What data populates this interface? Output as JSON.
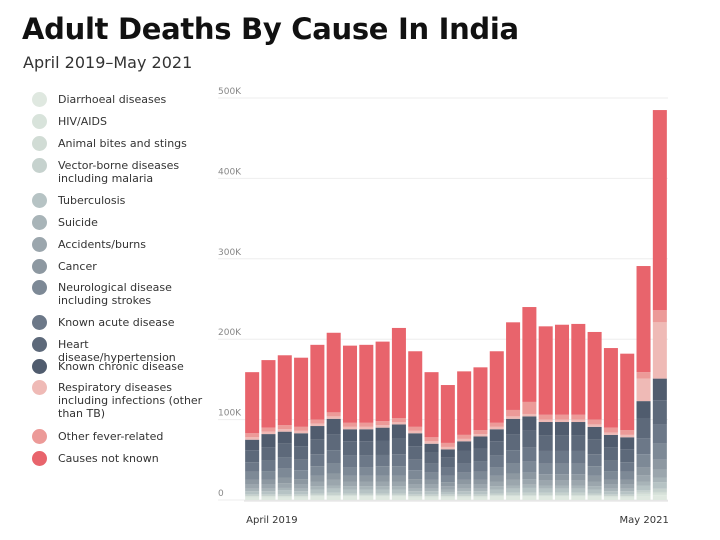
{
  "chart_data": {
    "type": "stacked-bar",
    "title": "Adult Deaths By Cause In India",
    "subtitle": "April 2019–May 2021",
    "categories": [
      "April 2019",
      null,
      null,
      null,
      null,
      null,
      null,
      null,
      null,
      null,
      null,
      null,
      null,
      null,
      null,
      null,
      null,
      null,
      null,
      null,
      null,
      null,
      null,
      null,
      null,
      "May 2021"
    ],
    "ylim": [
      0,
      500
    ],
    "yticks": [
      0,
      {
        "value": 100,
        "label": "100K"
      },
      {
        "value": 200,
        "label": "200K"
      },
      {
        "value": 300,
        "label": "300K"
      },
      {
        "value": 400,
        "label": "400K"
      },
      {
        "value": 500,
        "label": "500K"
      }
    ],
    "grid": true,
    "legend": "left",
    "series": [
      {
        "name": "Diarrhoeal diseases",
        "color": "#dfe8e0",
        "values": [
          3,
          3,
          3,
          3,
          4,
          4,
          4,
          4,
          4,
          4,
          3,
          3,
          3,
          3,
          3,
          4,
          4,
          4,
          4,
          4,
          4,
          4,
          3,
          3,
          5,
          6
        ]
      },
      {
        "name": "HIV/AIDS",
        "color": "#d8e3db",
        "values": [
          1,
          1,
          1,
          1,
          1,
          1,
          1,
          1,
          1,
          1,
          1,
          1,
          1,
          1,
          1,
          1,
          1,
          1,
          1,
          1,
          1,
          1,
          1,
          1,
          2,
          2
        ]
      },
      {
        "name": "Animal bites and stings",
        "color": "#d1dcd5",
        "values": [
          1,
          1,
          1,
          1,
          1,
          1,
          1,
          1,
          1,
          1,
          1,
          1,
          1,
          1,
          1,
          1,
          1,
          1,
          1,
          1,
          1,
          1,
          1,
          1,
          2,
          2
        ]
      },
      {
        "name": "Vector-borne diseases including malaria",
        "color": "#c6d2ce",
        "values": [
          2,
          2,
          2,
          2,
          2,
          3,
          2,
          2,
          2,
          2,
          2,
          2,
          2,
          2,
          2,
          2,
          3,
          3,
          3,
          3,
          3,
          2,
          2,
          2,
          3,
          4
        ]
      },
      {
        "name": "Tuberculosis",
        "color": "#b6c3c4",
        "values": [
          4,
          4,
          5,
          4,
          5,
          5,
          5,
          5,
          5,
          5,
          4,
          4,
          3,
          4,
          4,
          5,
          5,
          6,
          5,
          5,
          5,
          5,
          4,
          4,
          6,
          8
        ]
      },
      {
        "name": "Suicide",
        "color": "#a8b4b8",
        "values": [
          3,
          3,
          3,
          3,
          4,
          4,
          4,
          4,
          4,
          4,
          3,
          3,
          3,
          3,
          3,
          4,
          4,
          4,
          4,
          4,
          4,
          4,
          3,
          3,
          5,
          6
        ]
      },
      {
        "name": "Accidents/burns",
        "color": "#9ba6ad",
        "values": [
          5,
          5,
          6,
          5,
          6,
          7,
          6,
          6,
          6,
          6,
          5,
          5,
          4,
          5,
          5,
          6,
          7,
          7,
          6,
          6,
          6,
          6,
          5,
          5,
          8,
          10
        ]
      },
      {
        "name": "Cancer",
        "color": "#8d98a1",
        "values": [
          6,
          6,
          7,
          7,
          7,
          8,
          7,
          7,
          7,
          7,
          7,
          6,
          5,
          6,
          6,
          7,
          8,
          8,
          8,
          8,
          8,
          7,
          6,
          6,
          10,
          12
        ]
      },
      {
        "name": "Neurological disease including strokes",
        "color": "#7d8996",
        "values": [
          10,
          11,
          11,
          11,
          12,
          13,
          11,
          11,
          12,
          12,
          11,
          9,
          8,
          9,
          10,
          11,
          13,
          14,
          13,
          13,
          13,
          12,
          11,
          10,
          16,
          20
        ]
      },
      {
        "name": "Known acute disease",
        "color": "#6c7888",
        "values": [
          12,
          13,
          14,
          13,
          15,
          16,
          14,
          14,
          14,
          15,
          13,
          11,
          10,
          12,
          13,
          14,
          16,
          17,
          16,
          16,
          16,
          15,
          13,
          12,
          20,
          24
        ]
      },
      {
        "name": "Heart disease/hypertension",
        "color": "#5d697a",
        "values": [
          15,
          16,
          17,
          17,
          18,
          20,
          18,
          18,
          18,
          19,
          17,
          14,
          13,
          15,
          16,
          18,
          20,
          21,
          19,
          19,
          19,
          18,
          16,
          16,
          25,
          30
        ]
      },
      {
        "name": "Known chronic disease",
        "color": "#505c6e",
        "values": [
          13,
          17,
          15,
          16,
          17,
          19,
          15,
          15,
          16,
          18,
          16,
          11,
          10,
          12,
          15,
          15,
          19,
          18,
          17,
          17,
          17,
          16,
          16,
          15,
          21,
          27
        ]
      },
      {
        "name": "Respiratory diseases including infections (other than TB)",
        "color": "#efbab6",
        "values": [
          3,
          3,
          3,
          3,
          3,
          3,
          3,
          3,
          3,
          3,
          3,
          3,
          3,
          3,
          3,
          3,
          3,
          3,
          3,
          3,
          3,
          3,
          3,
          3,
          28,
          70
        ]
      },
      {
        "name": "Other fever-related",
        "color": "#ec9a98",
        "values": [
          5,
          5,
          5,
          5,
          5,
          5,
          5,
          5,
          5,
          5,
          5,
          5,
          5,
          5,
          5,
          5,
          8,
          15,
          6,
          6,
          6,
          6,
          6,
          6,
          8,
          15
        ]
      },
      {
        "name": "Causes not known",
        "color": "#e8646c",
        "values": [
          76,
          84,
          87,
          86,
          93,
          99,
          96,
          97,
          99,
          112,
          94,
          81,
          72,
          79,
          78,
          89,
          109,
          118,
          110,
          112,
          113,
          109,
          99,
          95,
          132,
          249
        ]
      }
    ]
  }
}
